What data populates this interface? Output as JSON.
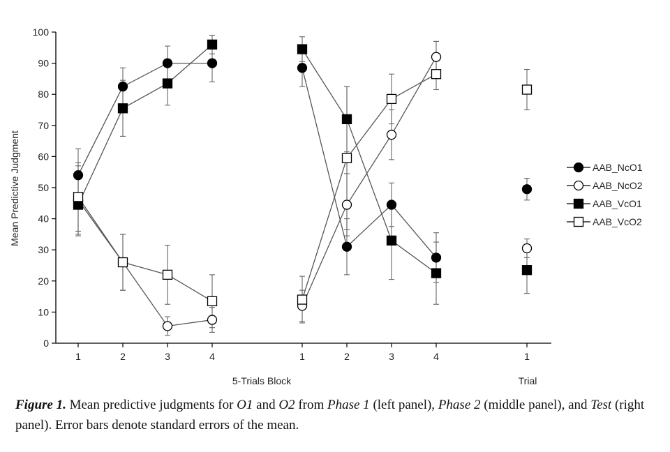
{
  "chart_data": {
    "type": "line",
    "ylabel": "Mean Predictive Judgment",
    "ylim": [
      0,
      100
    ],
    "yticks": [
      0,
      10,
      20,
      30,
      40,
      50,
      60,
      70,
      80,
      90,
      100
    ],
    "grid": false,
    "legend_position": "right",
    "xlabel_blocks": "5-Trials Block",
    "xlabel_trial": "Trial",
    "panels": [
      {
        "name": "Phase 1",
        "x": [
          "1",
          "2",
          "3",
          "4"
        ],
        "series": [
          {
            "name": "AAB_NcO1",
            "values": [
              54,
              82.5,
              90,
              90
            ],
            "err": [
              8.5,
              6,
              5.5,
              6
            ]
          },
          {
            "name": "AAB_NcO2",
            "values": [
              46,
              26,
              5.5,
              7.5
            ],
            "err": [
              11,
              9,
              3,
              4
            ]
          },
          {
            "name": "AAB_VcO1",
            "values": [
              44.5,
              75.5,
              83.5,
              96
            ],
            "err": [
              10,
              9,
              7,
              3
            ]
          },
          {
            "name": "AAB_VcO2",
            "values": [
              47,
              26,
              22,
              13.5
            ],
            "err": [
              11,
              9,
              9.5,
              8.5
            ]
          }
        ]
      },
      {
        "name": "Phase 2",
        "x": [
          "1",
          "2",
          "3",
          "4"
        ],
        "series": [
          {
            "name": "AAB_NcO1",
            "values": [
              88.5,
              31,
              44.5,
              27.5
            ],
            "err": [
              6,
              9,
              7,
              8
            ]
          },
          {
            "name": "AAB_NcO2",
            "values": [
              12,
              44.5,
              67,
              92
            ],
            "err": [
              5,
              10,
              8,
              5
            ]
          },
          {
            "name": "AAB_VcO1",
            "values": [
              94.5,
              72,
              33,
              22.5
            ],
            "err": [
              4,
              10.5,
              12.5,
              10
            ]
          },
          {
            "name": "AAB_VcO2",
            "values": [
              14,
              59.5,
              78.5,
              86.5
            ],
            "err": [
              7.5,
              23,
              8,
              5
            ]
          }
        ]
      },
      {
        "name": "Test",
        "x": [
          "1"
        ],
        "series": [
          {
            "name": "AAB_NcO1",
            "values": [
              49.5
            ],
            "err": [
              3.5
            ]
          },
          {
            "name": "AAB_NcO2",
            "values": [
              30.5
            ],
            "err": [
              3
            ]
          },
          {
            "name": "AAB_VcO1",
            "values": [
              23.5
            ],
            "err": [
              7.5
            ]
          },
          {
            "name": "AAB_VcO2",
            "values": [
              81.5
            ],
            "err": [
              6.5
            ]
          }
        ]
      }
    ],
    "series_styles": [
      {
        "name": "AAB_NcO1",
        "marker": "circle",
        "fill": "#000000"
      },
      {
        "name": "AAB_NcO2",
        "marker": "circle",
        "fill": "#ffffff"
      },
      {
        "name": "AAB_VcO1",
        "marker": "square",
        "fill": "#000000"
      },
      {
        "name": "AAB_VcO2",
        "marker": "square",
        "fill": "#ffffff"
      }
    ]
  },
  "caption": {
    "figure_label": "Figure 1.",
    "t1": " Mean predictive judgments for ",
    "o1": "O1",
    "t2": " and ",
    "o2": "O2",
    "t3": " from ",
    "phase1": "Phase 1",
    "t4": " (left panel), ",
    "phase2": "Phase 2",
    "t5": " (middle panel), and ",
    "test": "Test",
    "t6": " (right panel). Error bars denote standard errors of the mean."
  }
}
